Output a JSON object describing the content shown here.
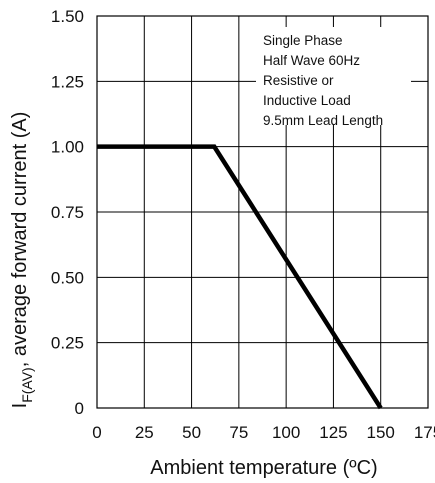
{
  "chart_data": {
    "type": "line",
    "xlabel": "Ambient temperature (ºC)",
    "ylabel_main": "I",
    "ylabel_sub": "F(AV)",
    "ylabel_rest": ", average forward current (A)",
    "x_ticks": [
      "0",
      "25",
      "50",
      "75",
      "100",
      "125",
      "150",
      "175"
    ],
    "y_ticks": [
      "0",
      "0.25",
      "0.50",
      "0.75",
      "1.00",
      "1.25",
      "1.50"
    ],
    "xlim": [
      0,
      175
    ],
    "ylim": [
      0,
      1.5
    ],
    "grid": true,
    "series": [
      {
        "x": [
          0,
          62,
          150
        ],
        "y": [
          1.0,
          1.0,
          0.0
        ]
      }
    ],
    "annotation": [
      "Single Phase",
      "Half Wave 60Hz",
      "Resistive or",
      "Inductive Load",
      "9.5mm Lead Length"
    ],
    "colors": {
      "line": "#000000",
      "grid": "#000000"
    }
  }
}
